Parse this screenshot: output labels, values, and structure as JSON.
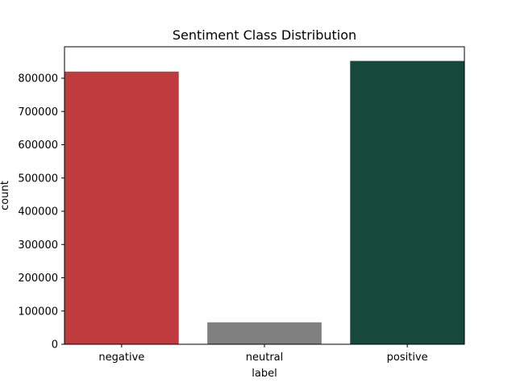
{
  "chart_data": {
    "type": "bar",
    "title": "Sentiment Class Distribution",
    "xlabel": "label",
    "ylabel": "count",
    "categories": [
      "negative",
      "neutral",
      "positive"
    ],
    "values": [
      820000,
      66000,
      852000
    ],
    "colors": [
      "#c03b3d",
      "#808080",
      "#17483c"
    ],
    "ylim": [
      0,
      894600
    ],
    "yticks": [
      0,
      100000,
      200000,
      300000,
      400000,
      500000,
      600000,
      700000,
      800000
    ],
    "grid": false,
    "legend": "none"
  }
}
